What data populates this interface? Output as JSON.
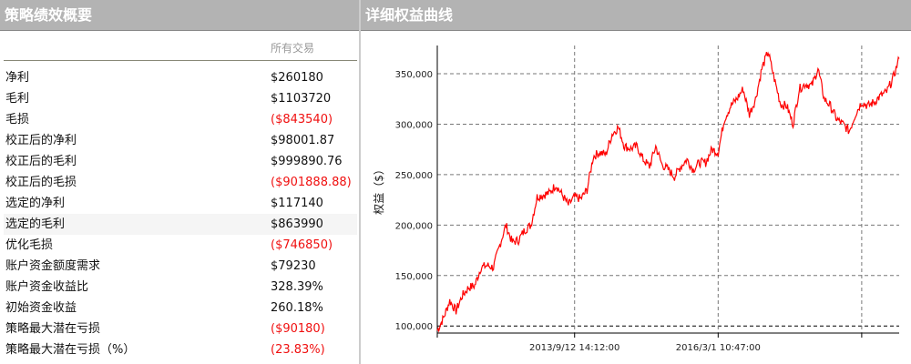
{
  "summary": {
    "title": "策略绩效概要",
    "column_header": "所有交易",
    "rows": [
      {
        "label": "净利",
        "value": "$260180",
        "negative": false
      },
      {
        "label": "毛利",
        "value": "$1103720",
        "negative": false
      },
      {
        "label": "毛损",
        "value": "($843540)",
        "negative": true
      },
      {
        "label": "校正后的净利",
        "value": "$98001.87",
        "negative": false
      },
      {
        "label": "校正后的毛利",
        "value": "$999890.76",
        "negative": false
      },
      {
        "label": "校正后的毛损",
        "value": "($901888.88)",
        "negative": true
      },
      {
        "label": "选定的净利",
        "value": "$117140",
        "negative": false
      },
      {
        "label": "选定的毛利",
        "value": "$863990",
        "negative": false,
        "highlighted": true
      },
      {
        "label": "优化毛损",
        "value": "($746850)",
        "negative": true
      },
      {
        "label": "账户资金额度需求",
        "value": "$79230",
        "negative": false
      },
      {
        "label": "账户资金收益比",
        "value": "328.39%",
        "negative": false
      },
      {
        "label": "初始资金收益",
        "value": "260.18%",
        "negative": false
      },
      {
        "label": "策略最大潜在亏损",
        "value": "($90180)",
        "negative": true
      },
      {
        "label": "策略最大潜在亏损（%）",
        "value": "(23.83%)",
        "negative": true
      }
    ]
  },
  "chart_panel": {
    "title": "详细权益曲线"
  },
  "chart_data": {
    "type": "line",
    "ylabel": "权益（$）",
    "ylim": [
      93000,
      378000
    ],
    "y_ticks": [
      100000,
      150000,
      200000,
      250000,
      300000,
      350000
    ],
    "y_tick_labels": [
      "100,000",
      "150,000",
      "200,000",
      "250,000",
      "300,000",
      "350,000"
    ],
    "x_ticks": [
      {
        "index": 22,
        "label": "2013/9/12 14:12:00"
      },
      {
        "index": 45,
        "label": "2016/3/1 10:47:00"
      },
      {
        "index": 68,
        "label": ""
      }
    ],
    "grid": true,
    "line_color": "#ff0000",
    "series": [
      {
        "values": [
          95500,
          108000,
          125000,
          115000,
          130000,
          138000,
          140000,
          158000,
          160000,
          158000,
          180000,
          200000,
          183000,
          185000,
          195000,
          200000,
          228000,
          230000,
          232000,
          240000,
          230000,
          220000,
          228000,
          226000,
          235000,
          268000,
          272000,
          270000,
          290000,
          297000,
          278000,
          276000,
          278000,
          265000,
          258000,
          278000,
          260000,
          255000,
          248000,
          258000,
          265000,
          255000,
          262000,
          262000,
          275000,
          272000,
          305000,
          318000,
          325000,
          335000,
          310000,
          325000,
          355000,
          372000,
          345000,
          320000,
          318000,
          300000,
          335000,
          340000,
          338000,
          355000,
          325000,
          318000,
          305000,
          300000,
          293000,
          310000,
          322000,
          318000,
          322000,
          328000,
          332000,
          345000,
          365000
        ]
      }
    ]
  }
}
